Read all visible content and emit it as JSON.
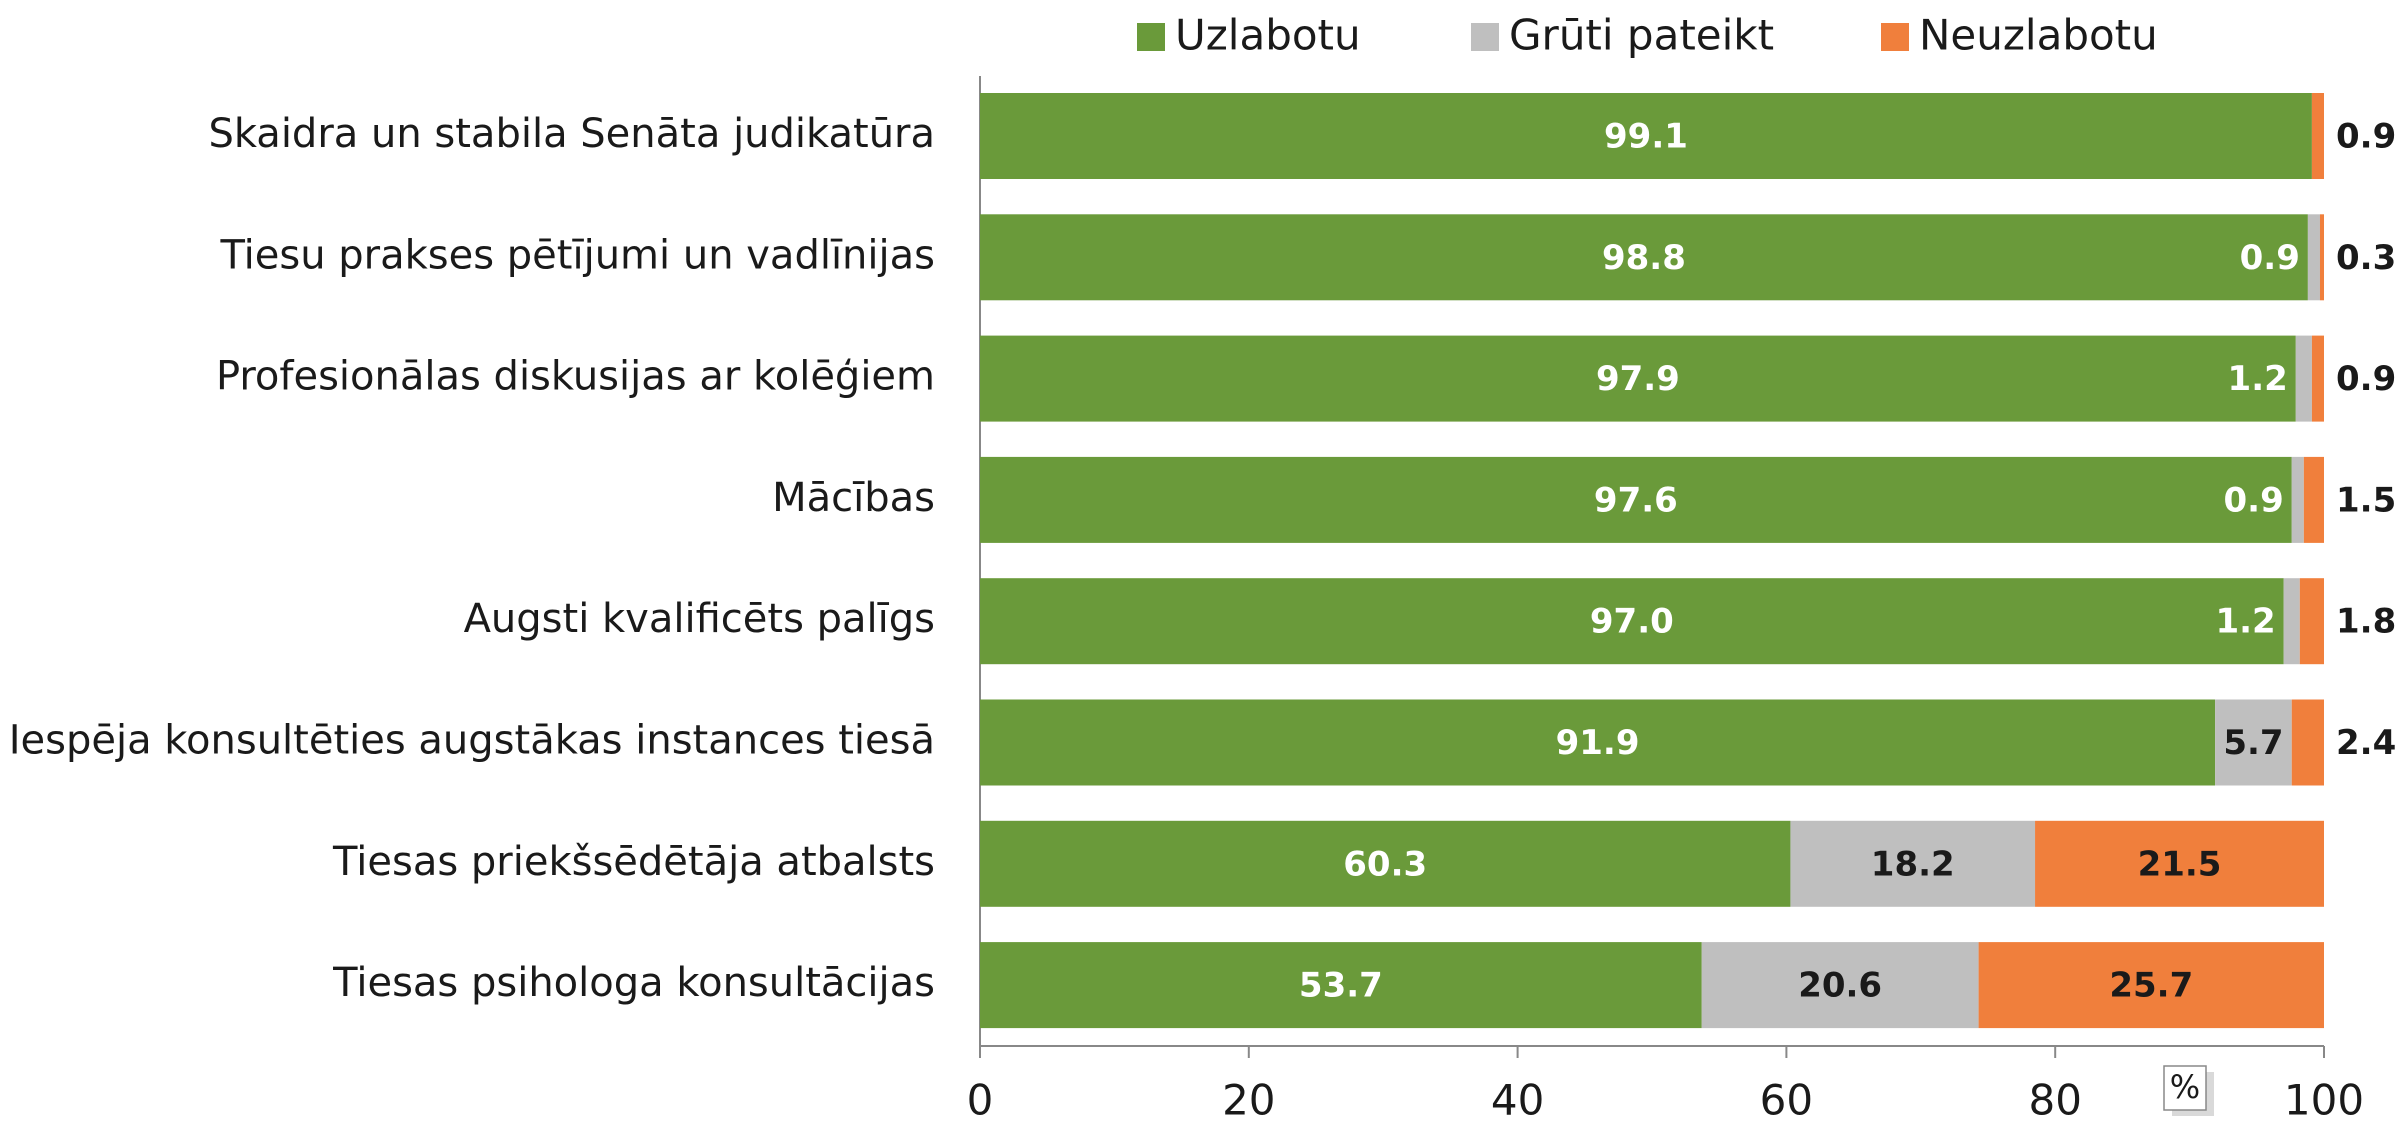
{
  "chart_data": {
    "type": "stacked_bar_horizontal",
    "categories": [
      "Skaidra un stabila Senāta judikatūra",
      "Tiesu prakses pētījumi un vadlīnijas",
      "Profesionālas diskusijas ar kolēģiem",
      "Mācības",
      "Augsti kvalificēts palīgs",
      "Iespēja konsultēties augstākas instances tiesā",
      "Tiesas priekšsēdētāja atbalsts",
      "Tiesas psihologa konsultācijas"
    ],
    "series": [
      {
        "name": "Uzlabotu",
        "color": "#6a9a3a",
        "values": [
          99.1,
          98.8,
          97.9,
          97.6,
          97.0,
          91.9,
          60.3,
          53.7
        ],
        "value_labels": [
          "99.1",
          "98.8",
          "97.9",
          "97.6",
          "97.0",
          "91.9",
          "60.3",
          "53.7"
        ]
      },
      {
        "name": "Grūti pateikt",
        "color": "#bfbfbf",
        "values": [
          null,
          0.9,
          1.2,
          0.9,
          1.2,
          5.7,
          18.2,
          20.6
        ],
        "value_labels": [
          null,
          "0.9",
          "1.2",
          "0.9",
          "1.2",
          "5.7",
          "18.2",
          "20.6"
        ]
      },
      {
        "name": "Neuzlabotu",
        "color": "#f07f3c",
        "values": [
          0.9,
          0.3,
          0.9,
          1.5,
          1.8,
          2.4,
          21.5,
          25.7
        ],
        "value_labels": [
          "0.9",
          "0.3",
          "0.9",
          "1.5",
          "1.8",
          "2.4",
          "21.5",
          "25.7"
        ]
      }
    ],
    "xlim": [
      0,
      100
    ],
    "xticks": [
      0,
      20,
      40,
      60,
      80,
      100
    ],
    "unit_label": "%",
    "legend": "top"
  }
}
